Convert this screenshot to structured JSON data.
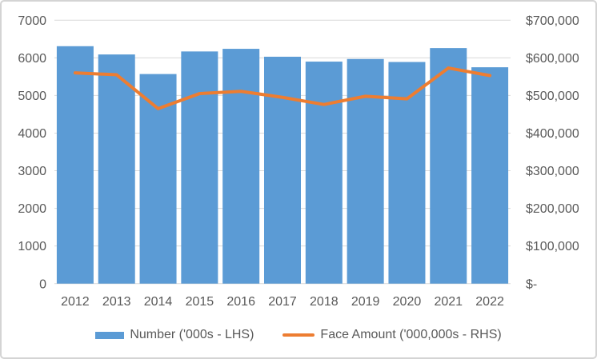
{
  "chart_data": {
    "type": "combo",
    "categories": [
      "2012",
      "2013",
      "2014",
      "2015",
      "2016",
      "2017",
      "2018",
      "2019",
      "2020",
      "2021",
      "2022"
    ],
    "series": [
      {
        "name": "Number ('000s - LHS)",
        "type": "bar",
        "axis": "left",
        "color": "#5B9BD5",
        "values": [
          6310,
          6090,
          5570,
          6170,
          6240,
          6030,
          5900,
          5970,
          5890,
          6260,
          5750
        ]
      },
      {
        "name": "Face Amount ('000,000s - RHS)",
        "type": "line",
        "axis": "right",
        "color": "#ED7D31",
        "values": [
          560000,
          555000,
          465000,
          505000,
          511000,
          495000,
          476000,
          498000,
          491000,
          573000,
          553000
        ]
      }
    ],
    "left_axis": {
      "min": 0,
      "max": 7000,
      "step": 1000,
      "tick_labels": [
        "0",
        "1000",
        "2000",
        "3000",
        "4000",
        "5000",
        "6000",
        "7000"
      ]
    },
    "right_axis": {
      "min": 0,
      "max": 700000,
      "step": 100000,
      "tick_labels": [
        "$-",
        "$100,000",
        "$200,000",
        "$300,000",
        "$400,000",
        "$500,000",
        "$600,000",
        "$700,000"
      ]
    },
    "grid": true,
    "legend_position": "bottom",
    "colors": {
      "gridline": "#D9D9D9",
      "axis_text": "#595959",
      "background": "#FFFFFF",
      "frame_border": "#D4D4D4"
    }
  }
}
